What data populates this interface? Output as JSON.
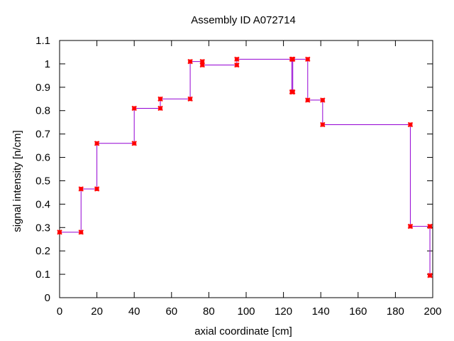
{
  "chart_data": {
    "type": "line",
    "title": "Assembly ID A072714",
    "xlabel": "axial coordinate [cm]",
    "ylabel": "signal intensity [n/cm]",
    "xlim": [
      0,
      200
    ],
    "ylim": [
      0,
      1.1
    ],
    "x_ticks": [
      0,
      20,
      40,
      60,
      80,
      100,
      120,
      140,
      160,
      180,
      200
    ],
    "x_tick_labels": [
      "0",
      "20",
      "40",
      "60",
      "80",
      "100",
      "120",
      "140",
      "160",
      "180",
      "200"
    ],
    "y_ticks": [
      0,
      0.1,
      0.2,
      0.3,
      0.4,
      0.5,
      0.6,
      0.7,
      0.8,
      0.9,
      1,
      1.1
    ],
    "y_tick_labels": [
      "0",
      "0.1",
      "0.2",
      "0.3",
      "0.4",
      "0.5",
      "0.6",
      "0.7",
      "0.8",
      "0.9",
      "1",
      "1.1"
    ],
    "grid": false,
    "legend": false,
    "line_color": "#9400d3",
    "marker_color": "#ff0000",
    "series": [
      {
        "x": [
          0,
          11.5,
          11.5,
          20,
          20,
          40,
          40,
          54,
          54,
          70,
          70,
          76.5,
          76.5,
          95,
          95,
          124.5,
          124.5,
          125,
          125,
          133,
          133,
          141,
          141,
          188,
          188,
          198.5,
          198.5
        ],
        "y": [
          0.28,
          0.28,
          0.465,
          0.465,
          0.66,
          0.66,
          0.81,
          0.81,
          0.85,
          0.85,
          1.01,
          1.01,
          0.995,
          0.995,
          1.02,
          1.02,
          0.88,
          0.88,
          1.02,
          1.02,
          0.845,
          0.845,
          0.74,
          0.74,
          0.305,
          0.305,
          0.095
        ]
      }
    ]
  }
}
